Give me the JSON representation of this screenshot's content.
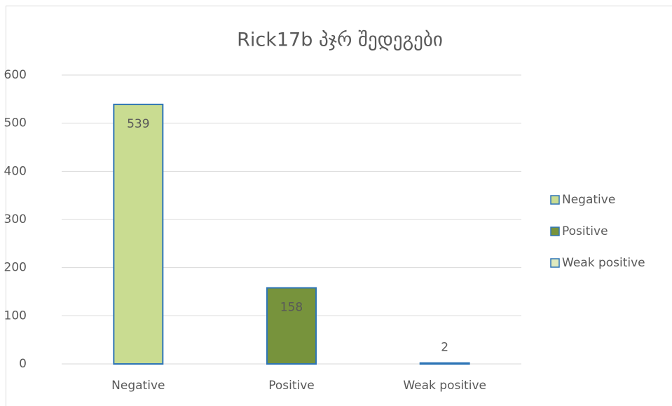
{
  "chart_data": {
    "type": "bar",
    "title": "Rick17b პჯრ შედეგები",
    "categories": [
      "Negative",
      "Positive",
      "Weak positive"
    ],
    "values": [
      539,
      158,
      2
    ],
    "colors": [
      "#c9dc91",
      "#77933c",
      "#dfeabf"
    ],
    "edge_color": "#2e75b6",
    "ylim": [
      0,
      600
    ],
    "yticks": [
      0,
      100,
      200,
      300,
      400,
      500,
      600
    ],
    "grid": true,
    "legend": "right"
  }
}
